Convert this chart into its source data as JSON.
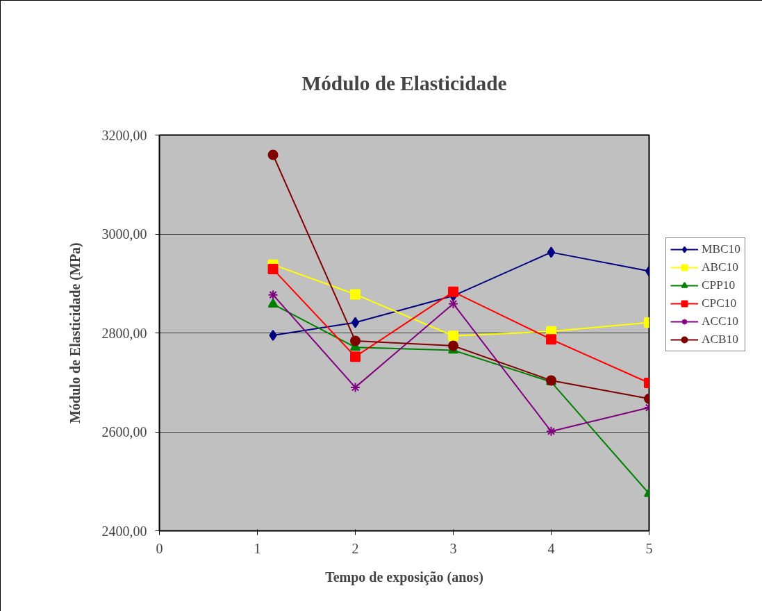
{
  "chart_data": {
    "type": "line",
    "title": "Módulo de Elasticidade",
    "xlabel": "Tempo de exposição (anos)",
    "ylabel": "Módulo de Elasticidade (MPa)",
    "x": [
      1.16,
      2,
      3,
      4,
      5
    ],
    "series": [
      {
        "name": "MBC10",
        "color": "#000080",
        "marker": "diamond",
        "values": [
          2795,
          2821,
          2875,
          2963,
          2925
        ]
      },
      {
        "name": "ABC10",
        "color": "#ffff00",
        "marker": "square",
        "values": [
          2938,
          2878,
          2794,
          2803,
          2821
        ]
      },
      {
        "name": "CPP10",
        "color": "#008000",
        "marker": "triangle",
        "values": [
          2858,
          2771,
          2765,
          2701,
          2475
        ]
      },
      {
        "name": "CPC10",
        "color": "#ff0000",
        "marker": "square",
        "values": [
          2929,
          2752,
          2883,
          2787,
          2699
        ]
      },
      {
        "name": "ACC10",
        "color": "#800080",
        "marker": "cross",
        "values": [
          2877,
          2690,
          2859,
          2601,
          2649
        ]
      },
      {
        "name": "ACB10",
        "color": "#800000",
        "marker": "circle",
        "values": [
          3160,
          2784,
          2774,
          2704,
          2667
        ]
      }
    ],
    "xlim": [
      0,
      5
    ],
    "xticks": [
      0,
      1,
      2,
      3,
      4,
      5
    ],
    "ylim": [
      2400,
      3200
    ],
    "yticks": [
      {
        "value": 2400,
        "label": "2400,00"
      },
      {
        "value": 2600,
        "label": "2600,00"
      },
      {
        "value": 2800,
        "label": "2800,00"
      },
      {
        "value": 3000,
        "label": "3000,00"
      },
      {
        "value": 3200,
        "label": "3200,00"
      }
    ],
    "grid": "y",
    "legend": "right"
  }
}
